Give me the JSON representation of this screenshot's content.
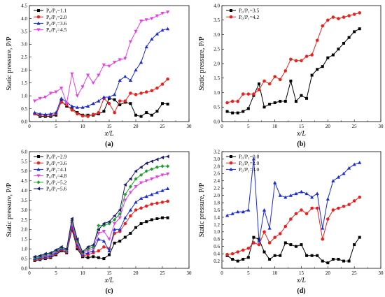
{
  "chart_data": [
    {
      "type": "line",
      "panel_label": "(a)",
      "xlabel": "x/L",
      "ylabel": "Static pressure, P/P",
      "xlim": [
        0,
        30
      ],
      "ylim": [
        0,
        4.5
      ],
      "xticks": [
        0,
        5,
        10,
        15,
        20,
        25,
        30
      ],
      "xtick_labels": [
        "0",
        "5",
        "10",
        "15",
        "20",
        "25",
        "30"
      ],
      "yticks": [
        0,
        0.5,
        1.0,
        1.5,
        2.0,
        2.5,
        3.0,
        3.5,
        4.0,
        4.5
      ],
      "ytick_labels": [
        "0.0",
        "0.5",
        "1.0",
        "1.5",
        "2.0",
        "2.5",
        "3.0",
        "3.5",
        "4.0",
        "4.5"
      ],
      "legend_position": "top-left",
      "series": [
        {
          "name": "P₀/P₁=1.1",
          "color": "#000000",
          "marker": "square",
          "x": [
            1,
            2,
            3,
            4,
            5,
            6,
            7,
            8,
            9,
            10,
            11,
            12,
            13,
            14,
            15,
            16,
            17,
            18,
            19,
            20,
            21,
            22,
            23,
            24,
            25,
            26
          ],
          "y": [
            0.3,
            0.2,
            0.2,
            0.2,
            0.25,
            0.8,
            0.6,
            0.5,
            0.35,
            0.25,
            0.25,
            0.25,
            0.3,
            0.4,
            0.9,
            0.85,
            0.65,
            0.75,
            0.7,
            0.25,
            0.2,
            0.35,
            0.25,
            0.4,
            0.7,
            0.68
          ]
        },
        {
          "name": "P₀/P₁=2.0",
          "color": "#e8231f",
          "marker": "circle",
          "x": [
            1,
            2,
            3,
            4,
            5,
            6,
            7,
            8,
            9,
            10,
            11,
            12,
            13,
            14,
            15,
            16,
            17,
            18,
            19,
            20,
            21,
            22,
            23,
            24,
            25,
            26
          ],
          "y": [
            0.3,
            0.25,
            0.25,
            0.25,
            0.3,
            0.75,
            0.65,
            0.45,
            0.3,
            0.22,
            0.2,
            0.28,
            0.35,
            0.9,
            0.7,
            0.35,
            0.8,
            0.8,
            1.1,
            1.05,
            1.1,
            1.15,
            1.2,
            1.3,
            1.45,
            1.65
          ]
        },
        {
          "name": "P₀/P₁=3.6",
          "color": "#1a2bd6",
          "marker": "triangle-up",
          "x": [
            1,
            2,
            3,
            4,
            5,
            6,
            7,
            8,
            9,
            10,
            11,
            12,
            13,
            14,
            15,
            16,
            17,
            18,
            19,
            20,
            21,
            22,
            23,
            24,
            25,
            26
          ],
          "y": [
            0.35,
            0.3,
            0.28,
            0.3,
            0.35,
            0.9,
            0.75,
            0.6,
            0.55,
            0.55,
            0.6,
            0.7,
            0.8,
            0.95,
            0.95,
            1.05,
            1.6,
            1.75,
            1.6,
            2.0,
            2.3,
            2.9,
            3.2,
            3.4,
            3.55,
            3.6
          ]
        },
        {
          "name": "P₀/P₁=4.5",
          "color": "#e83ee8",
          "marker": "triangle-down",
          "x": [
            1,
            2,
            3,
            4,
            5,
            6,
            7,
            8,
            9,
            10,
            11,
            12,
            13,
            14,
            15,
            16,
            17,
            18,
            19,
            20,
            21,
            22,
            23,
            24,
            25,
            26
          ],
          "y": [
            0.8,
            0.9,
            0.95,
            1.1,
            1.15,
            1.3,
            0.7,
            1.85,
            1.0,
            1.35,
            1.8,
            1.5,
            1.8,
            2.2,
            2.15,
            2.3,
            2.4,
            2.45,
            3.1,
            3.5,
            3.9,
            3.95,
            4.0,
            4.1,
            4.2,
            4.25
          ]
        }
      ]
    },
    {
      "type": "line",
      "panel_label": "(b)",
      "xlabel": "x/L",
      "ylabel": "Static pressure, P/P",
      "xlim": [
        0,
        30
      ],
      "ylim": [
        0,
        4.0
      ],
      "xticks": [
        0,
        5,
        10,
        15,
        20,
        25,
        30
      ],
      "xtick_labels": [
        "0",
        "5",
        "10",
        "15",
        "20",
        "25",
        "30"
      ],
      "yticks": [
        0,
        0.5,
        1.0,
        1.5,
        2.0,
        2.5,
        3.0,
        3.5,
        4.0
      ],
      "ytick_labels": [
        "0.0",
        "0.5",
        "1.0",
        "1.5",
        "2.0",
        "2.5",
        "3.0",
        "3.5",
        "4.0"
      ],
      "legend_position": "top-left",
      "series": [
        {
          "name": "P₀/P₁=3.5",
          "color": "#000000",
          "marker": "square",
          "x": [
            1,
            2,
            3,
            4,
            5,
            6,
            7,
            8,
            9,
            10,
            11,
            12,
            13,
            14,
            15,
            16,
            17,
            18,
            19,
            20,
            21,
            22,
            23,
            24,
            25,
            26
          ],
          "y": [
            0.35,
            0.3,
            0.3,
            0.35,
            0.45,
            0.9,
            1.3,
            0.5,
            0.6,
            0.65,
            0.7,
            0.7,
            1.4,
            0.7,
            0.9,
            0.8,
            1.6,
            1.8,
            1.9,
            2.2,
            2.3,
            2.5,
            2.7,
            2.9,
            3.1,
            3.2
          ]
        },
        {
          "name": "P₀/P₁=4.2",
          "color": "#e8231f",
          "marker": "circle",
          "x": [
            1,
            2,
            3,
            4,
            5,
            6,
            7,
            8,
            9,
            10,
            11,
            12,
            13,
            14,
            15,
            16,
            17,
            18,
            19,
            20,
            21,
            22,
            23,
            24,
            25,
            26
          ],
          "y": [
            0.65,
            0.7,
            0.7,
            0.95,
            0.95,
            0.95,
            1.1,
            1.4,
            1.3,
            1.55,
            1.45,
            1.75,
            2.15,
            2.1,
            2.1,
            2.25,
            2.3,
            2.8,
            3.3,
            3.5,
            3.6,
            3.55,
            3.6,
            3.65,
            3.7,
            3.75
          ]
        }
      ]
    },
    {
      "type": "line",
      "panel_label": "(c)",
      "xlabel": "x/L",
      "ylabel": "Static pressure, P/P",
      "xlim": [
        0,
        30
      ],
      "ylim": [
        0,
        6.0
      ],
      "xticks": [
        0,
        5,
        10,
        15,
        20,
        25,
        30
      ],
      "xtick_labels": [
        "0",
        "5",
        "10",
        "15",
        "20",
        "25",
        "30"
      ],
      "yticks": [
        0,
        0.5,
        1.0,
        1.5,
        2.0,
        2.5,
        3.0,
        3.5,
        4.0,
        4.5,
        5.0,
        5.5,
        6.0
      ],
      "ytick_labels": [
        "0.0",
        "0.5",
        "1.0",
        "1.5",
        "2.0",
        "2.5",
        "3.0",
        "3.5",
        "4.0",
        "4.5",
        "5.0",
        "5.5",
        "6.0"
      ],
      "legend_position": "top-left",
      "series": [
        {
          "name": "P₀/P₁=2.9",
          "color": "#000000",
          "marker": "square",
          "x": [
            1,
            2,
            3,
            4,
            5,
            6,
            7,
            8,
            9,
            10,
            11,
            12,
            13,
            14,
            15,
            16,
            17,
            18,
            19,
            20,
            21,
            22,
            23,
            24,
            25,
            26
          ],
          "y": [
            0.4,
            0.45,
            0.5,
            0.55,
            0.7,
            0.9,
            0.8,
            2.0,
            1.0,
            0.6,
            0.55,
            0.6,
            0.55,
            0.5,
            0.7,
            1.3,
            1.4,
            1.6,
            1.8,
            2.1,
            2.3,
            2.4,
            2.5,
            2.55,
            2.6,
            2.6
          ]
        },
        {
          "name": "P₀/P₁=3.6",
          "color": "#e8231f",
          "marker": "circle",
          "x": [
            1,
            2,
            3,
            4,
            5,
            6,
            7,
            8,
            9,
            10,
            11,
            12,
            13,
            14,
            15,
            16,
            17,
            18,
            19,
            20,
            21,
            22,
            23,
            24,
            25,
            26
          ],
          "y": [
            0.45,
            0.5,
            0.55,
            0.6,
            0.75,
            0.95,
            0.85,
            2.1,
            1.1,
            0.65,
            0.7,
            0.8,
            0.9,
            1.1,
            1.0,
            1.8,
            1.9,
            2.3,
            2.7,
            3.0,
            3.1,
            3.2,
            3.3,
            3.35,
            3.4,
            3.45
          ]
        },
        {
          "name": "P₀/P₁=4.1",
          "color": "#1a2bd6",
          "marker": "triangle-up",
          "x": [
            1,
            2,
            3,
            4,
            5,
            6,
            7,
            8,
            9,
            10,
            11,
            12,
            13,
            14,
            15,
            16,
            17,
            18,
            19,
            20,
            21,
            22,
            23,
            24,
            25,
            26
          ],
          "y": [
            0.5,
            0.55,
            0.6,
            0.65,
            0.8,
            1.0,
            0.9,
            2.2,
            1.2,
            0.7,
            0.8,
            0.9,
            1.5,
            1.4,
            0.9,
            2.0,
            2.0,
            2.6,
            3.0,
            3.4,
            3.6,
            3.7,
            3.8,
            3.9,
            4.0,
            4.1
          ]
        },
        {
          "name": "P₀/P₁=4.8",
          "color": "#e83ee8",
          "marker": "triangle-down",
          "x": [
            1,
            2,
            3,
            4,
            5,
            6,
            7,
            8,
            9,
            10,
            11,
            12,
            13,
            14,
            15,
            16,
            17,
            18,
            19,
            20,
            21,
            22,
            23,
            24,
            25,
            26
          ],
          "y": [
            0.55,
            0.6,
            0.65,
            0.7,
            0.85,
            1.05,
            0.9,
            2.3,
            1.3,
            0.75,
            0.9,
            1.0,
            1.8,
            1.9,
            1.5,
            2.3,
            2.6,
            3.5,
            3.9,
            4.2,
            4.4,
            4.5,
            4.6,
            4.7,
            4.8,
            4.85
          ]
        },
        {
          "name": "P₀/P₁=5.2",
          "color": "#1f9e2c",
          "marker": "diamond",
          "x": [
            1,
            2,
            3,
            4,
            5,
            6,
            7,
            8,
            9,
            10,
            11,
            12,
            13,
            14,
            15,
            16,
            17,
            18,
            19,
            20,
            21,
            22,
            23,
            24,
            25,
            26
          ],
          "y": [
            0.55,
            0.6,
            0.7,
            0.75,
            0.9,
            1.05,
            0.95,
            2.45,
            1.4,
            0.8,
            1.0,
            1.1,
            2.2,
            2.2,
            2.3,
            2.5,
            2.8,
            3.8,
            4.2,
            4.6,
            4.8,
            5.0,
            5.1,
            5.2,
            5.25,
            5.25
          ]
        },
        {
          "name": "P₀/P₁=5.6",
          "color": "#1a1a6e",
          "marker": "triangle-left",
          "x": [
            1,
            2,
            3,
            4,
            5,
            6,
            7,
            8,
            9,
            10,
            11,
            12,
            13,
            14,
            15,
            16,
            17,
            18,
            19,
            20,
            21,
            22,
            23,
            24,
            25,
            26
          ],
          "y": [
            0.6,
            0.65,
            0.75,
            0.8,
            0.95,
            1.1,
            1.0,
            2.55,
            1.5,
            0.85,
            1.1,
            1.2,
            2.0,
            2.3,
            2.4,
            2.7,
            3.0,
            4.3,
            4.6,
            5.0,
            5.2,
            5.4,
            5.5,
            5.6,
            5.7,
            5.75
          ]
        }
      ]
    },
    {
      "type": "line",
      "panel_label": "(d)",
      "xlabel": "x/L",
      "ylabel": "Static pressure, P/P",
      "xlim": [
        0,
        30
      ],
      "ylim": [
        0.0,
        3.2
      ],
      "xticks": [
        0,
        5,
        10,
        15,
        20,
        25,
        30
      ],
      "xtick_labels": [
        "0",
        "5",
        "10",
        "15",
        "20",
        "25",
        "30"
      ],
      "yticks": [
        0.2,
        0.4,
        0.6,
        0.8,
        1.0,
        1.2,
        1.4,
        1.6,
        1.8,
        2.0,
        2.2,
        2.4,
        2.6,
        2.8,
        3.0,
        3.2
      ],
      "ytick_labels": [
        "0.2",
        "0.4",
        "0.6",
        "0.8",
        "1.0",
        "1.2",
        "1.4",
        "1.6",
        "1.8",
        "2.0",
        "2.2",
        "2.4",
        "2.6",
        "2.8",
        "3.0",
        "3.2"
      ],
      "legend_position": "top-left",
      "series": [
        {
          "name": "P₀/P₁=0.8",
          "color": "#000000",
          "marker": "square",
          "x": [
            1,
            2,
            3,
            4,
            5,
            6,
            7,
            8,
            9,
            10,
            11,
            12,
            13,
            14,
            15,
            16,
            17,
            18,
            19,
            20,
            21,
            22,
            23,
            24,
            25,
            26
          ],
          "y": [
            0.35,
            0.25,
            0.2,
            0.25,
            0.3,
            0.85,
            0.8,
            0.45,
            0.25,
            0.35,
            0.35,
            0.7,
            0.65,
            0.6,
            0.65,
            0.35,
            0.35,
            0.35,
            0.2,
            0.15,
            0.25,
            0.25,
            0.2,
            0.2,
            0.65,
            0.85
          ]
        },
        {
          "name": "P₀/P₁=2.0",
          "color": "#e8231f",
          "marker": "circle",
          "x": [
            1,
            2,
            3,
            4,
            5,
            6,
            7,
            8,
            9,
            10,
            11,
            12,
            13,
            14,
            15,
            16,
            17,
            18,
            19,
            20,
            21,
            22,
            23,
            24,
            25,
            26
          ],
          "y": [
            0.38,
            0.4,
            0.45,
            0.5,
            0.55,
            0.7,
            0.65,
            1.0,
            0.7,
            0.85,
            0.95,
            1.15,
            1.35,
            1.5,
            1.6,
            1.5,
            1.65,
            1.65,
            0.8,
            1.35,
            1.6,
            1.65,
            1.7,
            1.75,
            1.85,
            1.95
          ]
        },
        {
          "name": "P₀/P₁=3.0",
          "color": "#1a2bd6",
          "marker": "triangle-up",
          "x": [
            1,
            2,
            3,
            4,
            5,
            6,
            7,
            8,
            9,
            10,
            11,
            12,
            13,
            14,
            15,
            16,
            17,
            18,
            19,
            20,
            21,
            22,
            23,
            24,
            25,
            26
          ],
          "y": [
            1.45,
            1.5,
            1.55,
            1.55,
            1.6,
            3.0,
            0.75,
            1.6,
            1.1,
            2.35,
            2.0,
            1.95,
            2.0,
            2.05,
            2.1,
            2.05,
            1.95,
            2.05,
            1.1,
            1.9,
            2.4,
            2.5,
            2.6,
            2.75,
            2.85,
            2.9
          ]
        }
      ]
    }
  ]
}
